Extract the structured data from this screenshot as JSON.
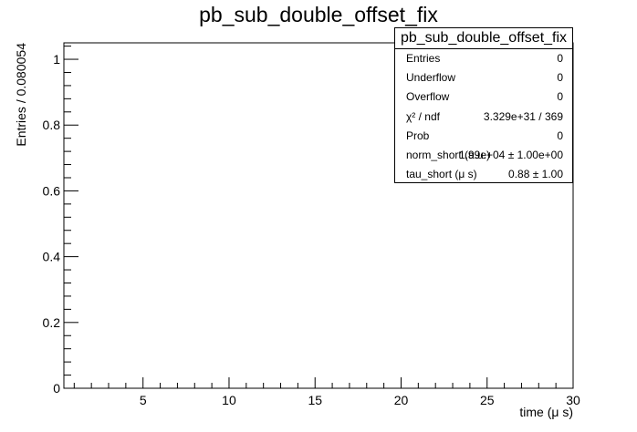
{
  "chart_data": {
    "type": "histogram",
    "title": "pb_sub_double_offset_fix",
    "xlabel": "time (μ s)",
    "ylabel": "Entries / 0.080054",
    "xlim": [
      0.4,
      30
    ],
    "ylim": [
      0,
      1.05
    ],
    "x_ticks": [
      5,
      10,
      15,
      20,
      25,
      30
    ],
    "y_ticks": [
      0,
      0.2,
      0.4,
      0.6,
      0.8,
      1
    ],
    "x": [],
    "values": [],
    "grid": false,
    "legend": "none"
  },
  "stats_box": {
    "title": "pb_sub_double_offset_fix",
    "rows": [
      {
        "name": "Entries",
        "value": "0"
      },
      {
        "name": "Underflow",
        "value": "0"
      },
      {
        "name": "Overflow",
        "value": "0"
      },
      {
        "name": "χ² / ndf",
        "value": "3.329e+31 / 369"
      },
      {
        "name": "Prob",
        "value": "0"
      },
      {
        "name": "norm_short (a.u.)",
        "value": "1.99e+04 ± 1.00e+00"
      },
      {
        "name": "tau_short (μ s)",
        "value": "0.88 ± 1.00"
      }
    ]
  }
}
